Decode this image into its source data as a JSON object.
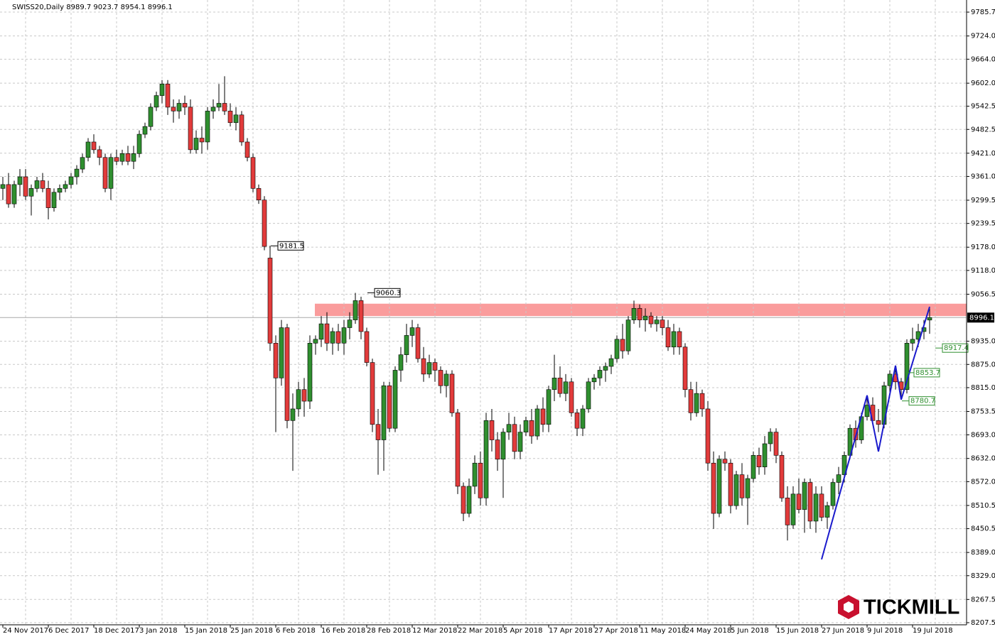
{
  "chart_data": {
    "type": "candlestick",
    "title": "SWISS20,Daily  8989.7 9023.7 8954.1 8996.1",
    "up_color": "#2f8f2f",
    "down_color": "#e23b3b",
    "grid": true,
    "ylim": [
      8202,
      9817
    ],
    "yticks": [
      9785.7,
      {
        "value": 9724,
        "label": "9724.0"
      },
      {
        "value": 9664,
        "label": "9664.0"
      },
      {
        "value": 9602,
        "label": "9602.0"
      },
      9542.5,
      9482.5,
      {
        "value": 9421,
        "label": "9421.0"
      },
      {
        "value": 9361,
        "label": "9361.0"
      },
      9299.5,
      9239.5,
      {
        "value": 9178,
        "label": "9178.0"
      },
      {
        "value": 9118,
        "label": "9118.0"
      },
      9056.5,
      {
        "value": 8935,
        "label": "8935.0"
      },
      {
        "value": 8875,
        "label": "8875.0"
      },
      {
        "value": 8815,
        "label": "8815.0"
      },
      8753.5,
      {
        "value": 8693,
        "label": "8693.0"
      },
      {
        "value": 8632,
        "label": "8632.0"
      },
      {
        "value": 8572,
        "label": "8572.0"
      },
      8510.5,
      8450.5,
      {
        "value": 8389,
        "label": "8389.0"
      },
      {
        "value": 8329,
        "label": "8329.0"
      },
      8267.5,
      8207.5
    ],
    "xticks": [
      {
        "value": 0,
        "label": "24 Nov 2017"
      },
      {
        "value": 8,
        "label": "6 Dec 2017"
      },
      {
        "value": 16,
        "label": "18 Dec 2017"
      },
      {
        "value": 24,
        "label": "3 Jan 2018"
      },
      {
        "value": 32,
        "label": "15 Jan 2018"
      },
      {
        "value": 40,
        "label": "25 Jan 2018"
      },
      {
        "value": 48,
        "label": "6 Feb 2018"
      },
      {
        "value": 56,
        "label": "16 Feb 2018"
      },
      {
        "value": 64,
        "label": "28 Feb 2018"
      },
      {
        "value": 72,
        "label": "12 Mar 2018"
      },
      {
        "value": 80,
        "label": "22 Mar 2018"
      },
      {
        "value": 88,
        "label": "5 Apr 2018"
      },
      {
        "value": 96,
        "label": "17 Apr 2018"
      },
      {
        "value": 104,
        "label": "27 Apr 2018"
      },
      {
        "value": 112,
        "label": "11 May 2018"
      },
      {
        "value": 120,
        "label": "24 May 2018"
      },
      {
        "value": 128,
        "label": "5 Jun 2018"
      },
      {
        "value": 136,
        "label": "15 Jun 2018"
      },
      {
        "value": 144,
        "label": "27 Jun 2018"
      },
      {
        "value": 152,
        "label": "9 Jul 2018"
      },
      {
        "value": 160,
        "label": "19 Jul 2018"
      }
    ],
    "ohlc": [
      [
        9330,
        9360,
        9300,
        9340
      ],
      [
        9340,
        9370,
        9280,
        9290
      ],
      [
        9290,
        9350,
        9280,
        9340
      ],
      [
        9340,
        9380,
        9310,
        9360
      ],
      [
        9360,
        9380,
        9300,
        9310
      ],
      [
        9310,
        9340,
        9260,
        9330
      ],
      [
        9330,
        9360,
        9320,
        9350
      ],
      [
        9350,
        9370,
        9320,
        9330
      ],
      [
        9330,
        9350,
        9250,
        9280
      ],
      [
        9280,
        9330,
        9270,
        9320
      ],
      [
        9320,
        9340,
        9300,
        9330
      ],
      [
        9330,
        9350,
        9320,
        9340
      ],
      [
        9340,
        9370,
        9330,
        9360
      ],
      [
        9360,
        9390,
        9340,
        9380
      ],
      [
        9380,
        9420,
        9370,
        9410
      ],
      [
        9410,
        9460,
        9400,
        9450
      ],
      [
        9450,
        9470,
        9420,
        9430
      ],
      [
        9430,
        9440,
        9390,
        9410
      ],
      [
        9410,
        9420,
        9320,
        9330
      ],
      [
        9330,
        9420,
        9300,
        9410
      ],
      [
        9410,
        9430,
        9390,
        9400
      ],
      [
        9400,
        9430,
        9390,
        9420
      ],
      [
        9420,
        9440,
        9390,
        9400
      ],
      [
        9400,
        9440,
        9380,
        9420
      ],
      [
        9420,
        9480,
        9410,
        9470
      ],
      [
        9470,
        9500,
        9460,
        9490
      ],
      [
        9490,
        9550,
        9480,
        9540
      ],
      [
        9540,
        9580,
        9530,
        9570
      ],
      [
        9570,
        9610,
        9550,
        9600
      ],
      [
        9600,
        9610,
        9520,
        9540
      ],
      [
        9540,
        9560,
        9500,
        9530
      ],
      [
        9530,
        9560,
        9510,
        9550
      ],
      [
        9550,
        9570,
        9520,
        9540
      ],
      [
        9540,
        9560,
        9420,
        9430
      ],
      [
        9430,
        9480,
        9420,
        9460
      ],
      [
        9460,
        9490,
        9420,
        9450
      ],
      [
        9450,
        9540,
        9430,
        9530
      ],
      [
        9530,
        9560,
        9510,
        9540
      ],
      [
        9540,
        9600,
        9530,
        9550
      ],
      [
        9550,
        9620,
        9520,
        9530
      ],
      [
        9530,
        9550,
        9490,
        9500
      ],
      [
        9500,
        9540,
        9480,
        9520
      ],
      [
        9520,
        9530,
        9440,
        9450
      ],
      [
        9450,
        9460,
        9400,
        9410
      ],
      [
        9410,
        9420,
        9320,
        9330
      ],
      [
        9330,
        9340,
        9290,
        9300
      ],
      [
        9300,
        9310,
        9170,
        9180
      ],
      [
        9150,
        9182,
        8910,
        8930
      ],
      [
        8930,
        8950,
        8700,
        8840
      ],
      [
        8840,
        8990,
        8820,
        8970
      ],
      [
        8970,
        8980,
        8710,
        8730
      ],
      [
        8730,
        8800,
        8600,
        8760
      ],
      [
        8760,
        8830,
        8740,
        8810
      ],
      [
        8810,
        8840,
        8740,
        8780
      ],
      [
        8780,
        8950,
        8760,
        8930
      ],
      [
        8930,
        8950,
        8900,
        8940
      ],
      [
        8940,
        9000,
        8920,
        8980
      ],
      [
        8980,
        9010,
        8910,
        8930
      ],
      [
        8930,
        8970,
        8900,
        8960
      ],
      [
        8960,
        8980,
        8910,
        8930
      ],
      [
        8930,
        8990,
        8900,
        8970
      ],
      [
        8970,
        9010,
        8940,
        8990
      ],
      [
        8990,
        9060,
        8980,
        9040
      ],
      [
        9040,
        9050,
        8940,
        8960
      ],
      [
        8960,
        8970,
        8870,
        8880
      ],
      [
        8880,
        8890,
        8700,
        8720
      ],
      [
        8720,
        8760,
        8590,
        8680
      ],
      [
        8680,
        8830,
        8600,
        8820
      ],
      [
        8820,
        8830,
        8700,
        8710
      ],
      [
        8710,
        8870,
        8700,
        8860
      ],
      [
        8860,
        8920,
        8830,
        8900
      ],
      [
        8900,
        8980,
        8880,
        8950
      ],
      [
        8950,
        8990,
        8920,
        8970
      ],
      [
        8970,
        8980,
        8880,
        8890
      ],
      [
        8890,
        8920,
        8830,
        8850
      ],
      [
        8850,
        8900,
        8840,
        8880
      ],
      [
        8880,
        8890,
        8830,
        8860
      ],
      [
        8860,
        8870,
        8800,
        8820
      ],
      [
        8820,
        8860,
        8790,
        8850
      ],
      [
        8850,
        8860,
        8740,
        8750
      ],
      [
        8750,
        8760,
        8540,
        8560
      ],
      [
        8560,
        8570,
        8470,
        8490
      ],
      [
        8490,
        8580,
        8480,
        8560
      ],
      [
        8560,
        8640,
        8540,
        8620
      ],
      [
        8620,
        8650,
        8510,
        8530
      ],
      [
        8530,
        8750,
        8510,
        8730
      ],
      [
        8730,
        8760,
        8650,
        8680
      ],
      [
        8680,
        8700,
        8600,
        8630
      ],
      [
        8630,
        8710,
        8530,
        8700
      ],
      [
        8700,
        8750,
        8680,
        8720
      ],
      [
        8720,
        8740,
        8630,
        8650
      ],
      [
        8650,
        8720,
        8630,
        8700
      ],
      [
        8700,
        8740,
        8690,
        8730
      ],
      [
        8730,
        8760,
        8670,
        8690
      ],
      [
        8690,
        8770,
        8680,
        8760
      ],
      [
        8760,
        8790,
        8700,
        8720
      ],
      [
        8720,
        8820,
        8700,
        8810
      ],
      [
        8810,
        8900,
        8780,
        8840
      ],
      [
        8840,
        8870,
        8790,
        8800
      ],
      [
        8800,
        8850,
        8780,
        8830
      ],
      [
        8830,
        8840,
        8740,
        8750
      ],
      [
        8750,
        8760,
        8690,
        8710
      ],
      [
        8710,
        8770,
        8690,
        8760
      ],
      [
        8760,
        8840,
        8750,
        8830
      ],
      [
        8830,
        8850,
        8810,
        8840
      ],
      [
        8840,
        8870,
        8820,
        8860
      ],
      [
        8860,
        8880,
        8830,
        8870
      ],
      [
        8870,
        8900,
        8850,
        8890
      ],
      [
        8890,
        8950,
        8880,
        8940
      ],
      [
        8940,
        8980,
        8890,
        8910
      ],
      [
        8910,
        9000,
        8900,
        8990
      ],
      [
        8990,
        9040,
        8980,
        9020
      ],
      [
        9020,
        9030,
        8970,
        8990
      ],
      [
        8990,
        9020,
        8960,
        9000
      ],
      [
        9000,
        9010,
        8970,
        8980
      ],
      [
        8980,
        9000,
        8960,
        8990
      ],
      [
        8990,
        9000,
        8950,
        8970
      ],
      [
        8970,
        8990,
        8910,
        8920
      ],
      [
        8920,
        8980,
        8900,
        8960
      ],
      [
        8960,
        8970,
        8900,
        8920
      ],
      [
        8920,
        8930,
        8790,
        8810
      ],
      [
        8810,
        8830,
        8730,
        8750
      ],
      [
        8750,
        8830,
        8740,
        8800
      ],
      [
        8800,
        8810,
        8740,
        8760
      ],
      [
        8760,
        8780,
        8600,
        8620
      ],
      [
        8620,
        8650,
        8450,
        8490
      ],
      [
        8490,
        8640,
        8480,
        8630
      ],
      [
        8630,
        8650,
        8600,
        8620
      ],
      [
        8620,
        8630,
        8490,
        8510
      ],
      [
        8510,
        8600,
        8500,
        8590
      ],
      [
        8590,
        8620,
        8510,
        8530
      ],
      [
        8530,
        8590,
        8460,
        8580
      ],
      [
        8580,
        8650,
        8570,
        8640
      ],
      [
        8640,
        8660,
        8590,
        8610
      ],
      [
        8610,
        8690,
        8590,
        8670
      ],
      [
        8670,
        8710,
        8650,
        8700
      ],
      [
        8700,
        8710,
        8620,
        8640
      ],
      [
        8640,
        8650,
        8520,
        8530
      ],
      [
        8530,
        8560,
        8420,
        8460
      ],
      [
        8460,
        8560,
        8450,
        8540
      ],
      [
        8540,
        8580,
        8490,
        8500
      ],
      [
        8500,
        8580,
        8440,
        8570
      ],
      [
        8570,
        8580,
        8450,
        8470
      ],
      [
        8470,
        8560,
        8440,
        8540
      ],
      [
        8540,
        8560,
        8470,
        8480
      ],
      [
        8480,
        8520,
        8450,
        8510
      ],
      [
        8510,
        8580,
        8500,
        8570
      ],
      [
        8570,
        8610,
        8540,
        8590
      ],
      [
        8590,
        8650,
        8570,
        8640
      ],
      [
        8640,
        8720,
        8630,
        8710
      ],
      [
        8710,
        8730,
        8660,
        8680
      ],
      [
        8680,
        8750,
        8670,
        8740
      ],
      [
        8740,
        8790,
        8730,
        8770
      ],
      [
        8770,
        8790,
        8720,
        8730
      ],
      [
        8730,
        8760,
        8700,
        8720
      ],
      [
        8720,
        8830,
        8710,
        8820
      ],
      [
        8820,
        8860,
        8800,
        8850
      ],
      [
        8850,
        8870,
        8810,
        8830
      ],
      [
        8830,
        8840,
        8790,
        8810
      ],
      [
        8810,
        8940,
        8800,
        8930
      ],
      [
        8930,
        8970,
        8910,
        8940
      ],
      [
        8940,
        8980,
        8920,
        8960
      ],
      [
        8960,
        8990,
        8940,
        8970
      ],
      [
        8989.7,
        9023.7,
        8954.1,
        8996.1
      ]
    ],
    "last_price": 8996.1,
    "zone": {
      "from": 9000,
      "to": 9032,
      "color": "#f98b8b"
    },
    "zigzag": {
      "x": [
        144,
        152,
        154,
        157,
        158,
        163
      ],
      "values": [
        8371,
        8795,
        8650,
        8872,
        8784,
        9024
      ],
      "color": "#1a1acc"
    },
    "price_labels": [
      {
        "value": 9181.5,
        "color": "#000000"
      },
      {
        "value": 9060.3,
        "color": "#000000"
      },
      {
        "value": 8917.4,
        "color": "#2f8f2f"
      },
      {
        "value": 8853.7,
        "color": "#2f8f2f"
      },
      {
        "value": 8780.7,
        "color": "#2f8f2f"
      }
    ],
    "brand": "TICKMILL"
  }
}
